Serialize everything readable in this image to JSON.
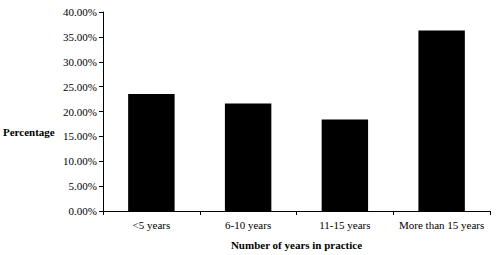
{
  "chart_data": {
    "type": "bar",
    "x_label": "Number of years in practice",
    "y_label": "Percentage",
    "categories": [
      "<5 years",
      "6-10 years",
      "11-15 years",
      "More than 15 years"
    ],
    "values": [
      23.5,
      21.6,
      18.4,
      36.3
    ],
    "color": "#000000",
    "ylim": [
      0,
      40
    ],
    "yticks": [
      {
        "value": 0,
        "label": "0.00%"
      },
      {
        "value": 5,
        "label": "5.00%"
      },
      {
        "value": 10,
        "label": "10.00%"
      },
      {
        "value": 15,
        "label": "15.00%"
      },
      {
        "value": 20,
        "label": "20.00%"
      },
      {
        "value": 25,
        "label": "25.00%"
      },
      {
        "value": 30,
        "label": "30.00%"
      },
      {
        "value": 35,
        "label": "35.00%"
      },
      {
        "value": 40,
        "label": "40.00%"
      }
    ],
    "grid": false
  }
}
